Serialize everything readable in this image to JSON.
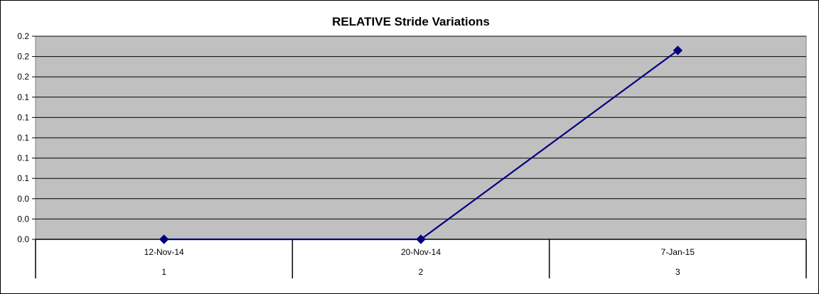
{
  "chart_data": {
    "type": "line",
    "title": "RELATIVE Stride Variations",
    "xlabel": "",
    "ylabel": "",
    "categories": [
      "12-Nov-14",
      "20-Nov-14",
      "7-Jan-15"
    ],
    "category_index_labels": [
      "1",
      "2",
      "3"
    ],
    "y_tick_labels": [
      "0.0",
      "0.0",
      "0.0",
      "0.1",
      "0.1",
      "0.1",
      "0.1",
      "0.1",
      "0.2",
      "0.2",
      "0.2"
    ],
    "ylim": [
      0,
      0.2
    ],
    "series": [
      {
        "values": [
          0,
          0,
          0.186
        ]
      }
    ],
    "grid": true,
    "legend": "none",
    "colors": {
      "plot_background": "#c0c0c0",
      "line": "#000080",
      "marker": "#000080",
      "gridline": "#000000"
    },
    "marker": "diamond"
  }
}
